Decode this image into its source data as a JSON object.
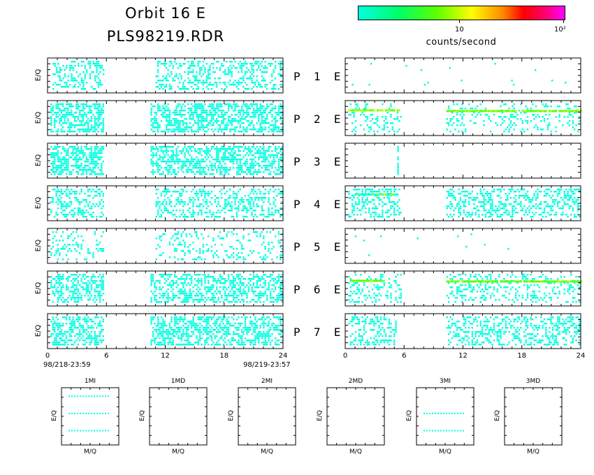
{
  "title_line1": "Orbit 16 E",
  "title_line2": "PLS98219.RDR",
  "colorbar": {
    "label": "counts/second",
    "tick_10": "10",
    "tick_100": "10²",
    "colors": [
      "#00ffe0",
      "#00ff66",
      "#5cff00",
      "#ffff00",
      "#ff8800",
      "#ff0000",
      "#ff0066",
      "#ff00ff"
    ]
  },
  "axis": {
    "ylabel": "E/Q",
    "xticks": [
      "0",
      "6",
      "12",
      "18",
      "24"
    ],
    "start_date": "98/218-23:59",
    "end_date": "98/219-23:57"
  },
  "panel_labels": [
    "P 1 E",
    "P 2 E",
    "P 3 E",
    "P 4 E",
    "P 5 E",
    "P 6 E",
    "P 7 E"
  ],
  "small_panels": {
    "titles": [
      "1MI",
      "1MD",
      "2MI",
      "2MD",
      "3MI",
      "3MD"
    ],
    "xlabel": "M/Q",
    "ylabel": "E/Q"
  },
  "chart_data": {
    "type": "heatmap",
    "title": "Orbit 16 E / PLS98219.RDR",
    "xlabel": "",
    "ylabel": "E/Q",
    "xlim": [
      0,
      24
    ],
    "color_scale": "log",
    "color_label": "counts/second",
    "panels": [
      {
        "name": "P 1 E",
        "side": "left",
        "coverage_hours": [
          [
            0.5,
            5.8
          ],
          [
            11.0,
            24.0
          ]
        ],
        "density": 0.35,
        "level": "low",
        "bands": []
      },
      {
        "name": "P 1 E",
        "side": "right",
        "coverage_hours": [
          [
            0.5,
            24.0
          ]
        ],
        "density": 0.005,
        "level": "low",
        "bands": []
      },
      {
        "name": "P 2 E",
        "side": "left",
        "coverage_hours": [
          [
            0.3,
            5.8
          ],
          [
            10.5,
            24.0
          ]
        ],
        "density": 0.55,
        "level": "low",
        "bands": []
      },
      {
        "name": "P 2 E",
        "side": "right",
        "coverage_hours": [
          [
            0.3,
            5.8
          ],
          [
            10.3,
            24.0
          ]
        ],
        "density": 0.18,
        "level": "low",
        "bands": [
          {
            "x": [
              0.3,
              5.5
            ],
            "e_frac": 0.25,
            "level": "medium"
          },
          {
            "x": [
              10.3,
              24.0
            ],
            "e_frac": 0.27,
            "level": "medium"
          }
        ]
      },
      {
        "name": "P 3 E",
        "side": "left",
        "coverage_hours": [
          [
            0.3,
            5.8
          ],
          [
            10.5,
            24.0
          ]
        ],
        "density": 0.55,
        "level": "low",
        "bands": []
      },
      {
        "name": "P 3 E",
        "side": "right",
        "coverage_hours": [
          [
            5.3,
            5.4
          ]
        ],
        "density": 0.5,
        "level": "low",
        "bands": []
      },
      {
        "name": "P 4 E",
        "side": "left",
        "coverage_hours": [
          [
            0.3,
            5.8
          ],
          [
            11.0,
            24.0
          ]
        ],
        "density": 0.35,
        "level": "low",
        "bands": []
      },
      {
        "name": "P 4 E",
        "side": "right",
        "coverage_hours": [
          [
            0.3,
            5.8
          ],
          [
            10.3,
            24.0
          ]
        ],
        "density": 0.35,
        "level": "low",
        "bands": [
          {
            "x": [
              1.0,
              5.5
            ],
            "e_frac": 0.22,
            "level": "low"
          }
        ]
      },
      {
        "name": "P 5 E",
        "side": "left",
        "coverage_hours": [
          [
            0.3,
            5.8
          ],
          [
            11.0,
            24.0
          ]
        ],
        "density": 0.18,
        "level": "low",
        "bands": []
      },
      {
        "name": "P 5 E",
        "side": "right",
        "coverage_hours": [
          [
            0.3,
            24.0
          ]
        ],
        "density": 0.01,
        "level": "low",
        "bands": []
      },
      {
        "name": "P 6 E",
        "side": "left",
        "coverage_hours": [
          [
            0.3,
            5.8
          ],
          [
            10.5,
            24.0
          ]
        ],
        "density": 0.45,
        "level": "low",
        "bands": []
      },
      {
        "name": "P 6 E",
        "side": "right",
        "coverage_hours": [
          [
            0.3,
            5.8
          ],
          [
            10.3,
            24.0
          ]
        ],
        "density": 0.25,
        "level": "low",
        "bands": [
          {
            "x": [
              0.3,
              4.0
            ],
            "e_frac": 0.25,
            "level": "medium"
          },
          {
            "x": [
              10.3,
              24.0
            ],
            "e_frac": 0.27,
            "level": "medium"
          }
        ]
      },
      {
        "name": "P 7 E",
        "side": "left",
        "coverage_hours": [
          [
            0.3,
            5.8
          ],
          [
            10.5,
            24.0
          ]
        ],
        "density": 0.5,
        "level": "low",
        "bands": []
      },
      {
        "name": "P 7 E",
        "side": "right",
        "coverage_hours": [
          [
            0.3,
            5.3
          ],
          [
            10.3,
            24.0
          ]
        ],
        "density": 0.35,
        "level": "low",
        "bands": []
      }
    ],
    "small_panels": [
      {
        "name": "1MI",
        "dotted_rows_frac": [
          0.15,
          0.45,
          0.75
        ]
      },
      {
        "name": "1MD",
        "dotted_rows_frac": []
      },
      {
        "name": "2MI",
        "dotted_rows_frac": []
      },
      {
        "name": "2MD",
        "dotted_rows_frac": []
      },
      {
        "name": "3MI",
        "dotted_rows_frac": [
          0.45,
          0.75
        ]
      },
      {
        "name": "3MD",
        "dotted_rows_frac": []
      }
    ]
  }
}
